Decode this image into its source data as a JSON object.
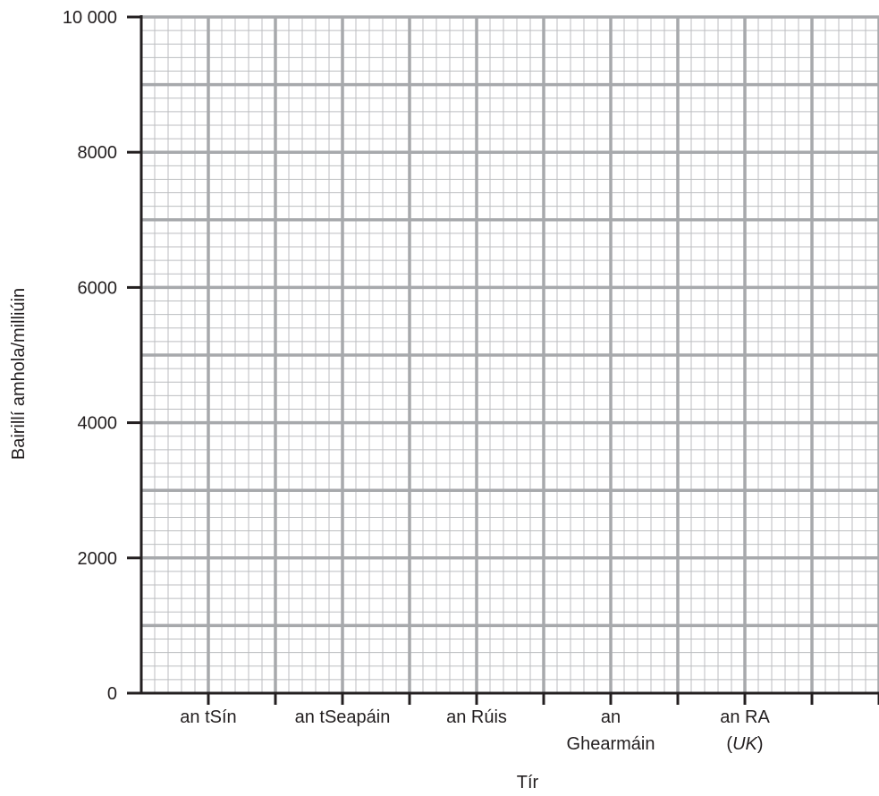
{
  "chart_data": {
    "type": "bar",
    "title": "",
    "xlabel": "Tír",
    "ylabel": "Bairillí amhola/milliúin",
    "categories": [
      [
        "an tSín"
      ],
      [
        "an tSeapáin"
      ],
      [
        "an Rúis"
      ],
      [
        "an",
        "Ghearmáin"
      ],
      [
        "an RA",
        "(UK)"
      ]
    ],
    "category_italic_parts": [
      "UK"
    ],
    "series": [],
    "ylim": [
      0,
      10000
    ],
    "y_ticks": [
      0,
      2000,
      4000,
      6000,
      8000,
      10000
    ],
    "y_tick_labels": [
      "0",
      "2000",
      "4000",
      "6000",
      "8000",
      "10 000"
    ],
    "grid": true,
    "grid_major_step": 1000,
    "grid_minor_divisions": 5,
    "colors": {
      "axis": "#231f20",
      "grid_major": "#a7a9ac",
      "grid_minor": "#bcbec0",
      "text": "#231f20"
    }
  }
}
